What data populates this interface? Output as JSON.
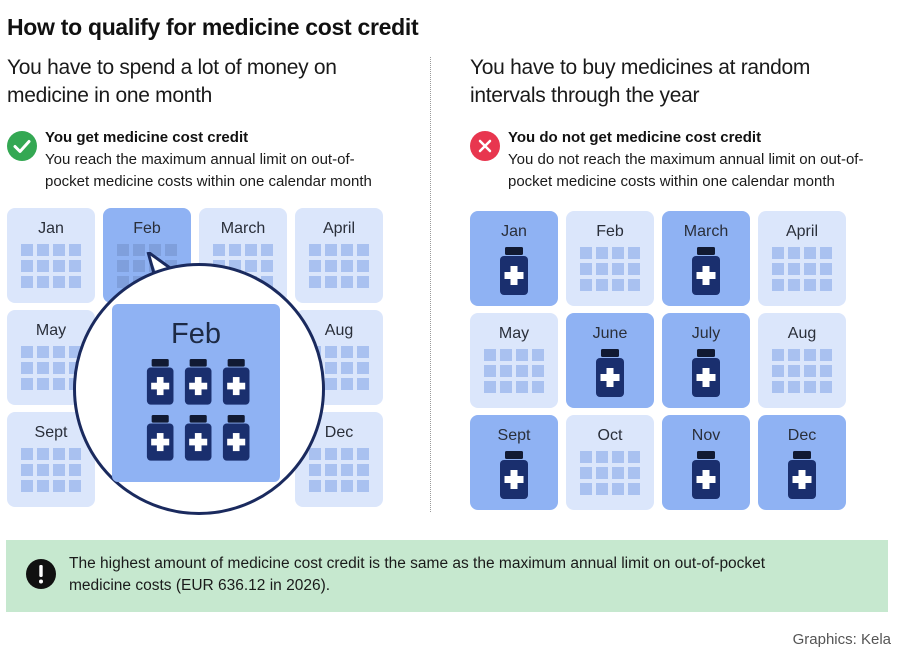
{
  "title": "How to qualify for medicine cost credit",
  "left": {
    "subtitle_line1": "You have to spend a lot of money on",
    "subtitle_line2": "medicine in one month",
    "status_heading": "You get medicine cost credit",
    "status_line1": "You reach the maximum annual limit on out-of-",
    "status_line2": "pocket medicine costs within one calendar month",
    "status_icon": "check-icon",
    "months": [
      {
        "label": "Jan",
        "highlight": false
      },
      {
        "label": "Feb",
        "highlight": true
      },
      {
        "label": "March",
        "highlight": false
      },
      {
        "label": "April",
        "highlight": false
      },
      {
        "label": "May",
        "highlight": false
      },
      {
        "label": "Aug",
        "highlight": false
      },
      {
        "label": "Sept",
        "highlight": false
      },
      {
        "label": "Dec",
        "highlight": false
      }
    ],
    "zoom_label": "Feb",
    "zoom_bottle_count": 6
  },
  "right": {
    "subtitle_line1": "You have to buy medicines at random",
    "subtitle_line2": "intervals through the year",
    "status_heading": "You do not get medicine cost credit",
    "status_line1": "You do not reach the maximum annual limit on out-of-",
    "status_line2": "pocket medicine costs within one calendar month",
    "status_icon": "cross-icon",
    "months": [
      {
        "label": "Jan",
        "highlight": true
      },
      {
        "label": "Feb",
        "highlight": false
      },
      {
        "label": "March",
        "highlight": true
      },
      {
        "label": "April",
        "highlight": false
      },
      {
        "label": "May",
        "highlight": false
      },
      {
        "label": "June",
        "highlight": true
      },
      {
        "label": "July",
        "highlight": true
      },
      {
        "label": "Aug",
        "highlight": false
      },
      {
        "label": "Sept",
        "highlight": true
      },
      {
        "label": "Oct",
        "highlight": false
      },
      {
        "label": "Nov",
        "highlight": true
      },
      {
        "label": "Dec",
        "highlight": true
      }
    ]
  },
  "note": {
    "icon": "exclamation-icon",
    "line1": "The highest amount of medicine cost credit is the same as the maximum annual limit on out-of-pocket",
    "line2": "medicine costs (EUR 636.12 in 2026)."
  },
  "credit": "Graphics: Kela",
  "colors": {
    "month_bg": "#dbe6fb",
    "month_highlight": "#8fb2f3",
    "bottle": "#1a2f6e",
    "check_green": "#34a853",
    "cross_red": "#e8364f",
    "note_bg": "#c6e8cf"
  }
}
